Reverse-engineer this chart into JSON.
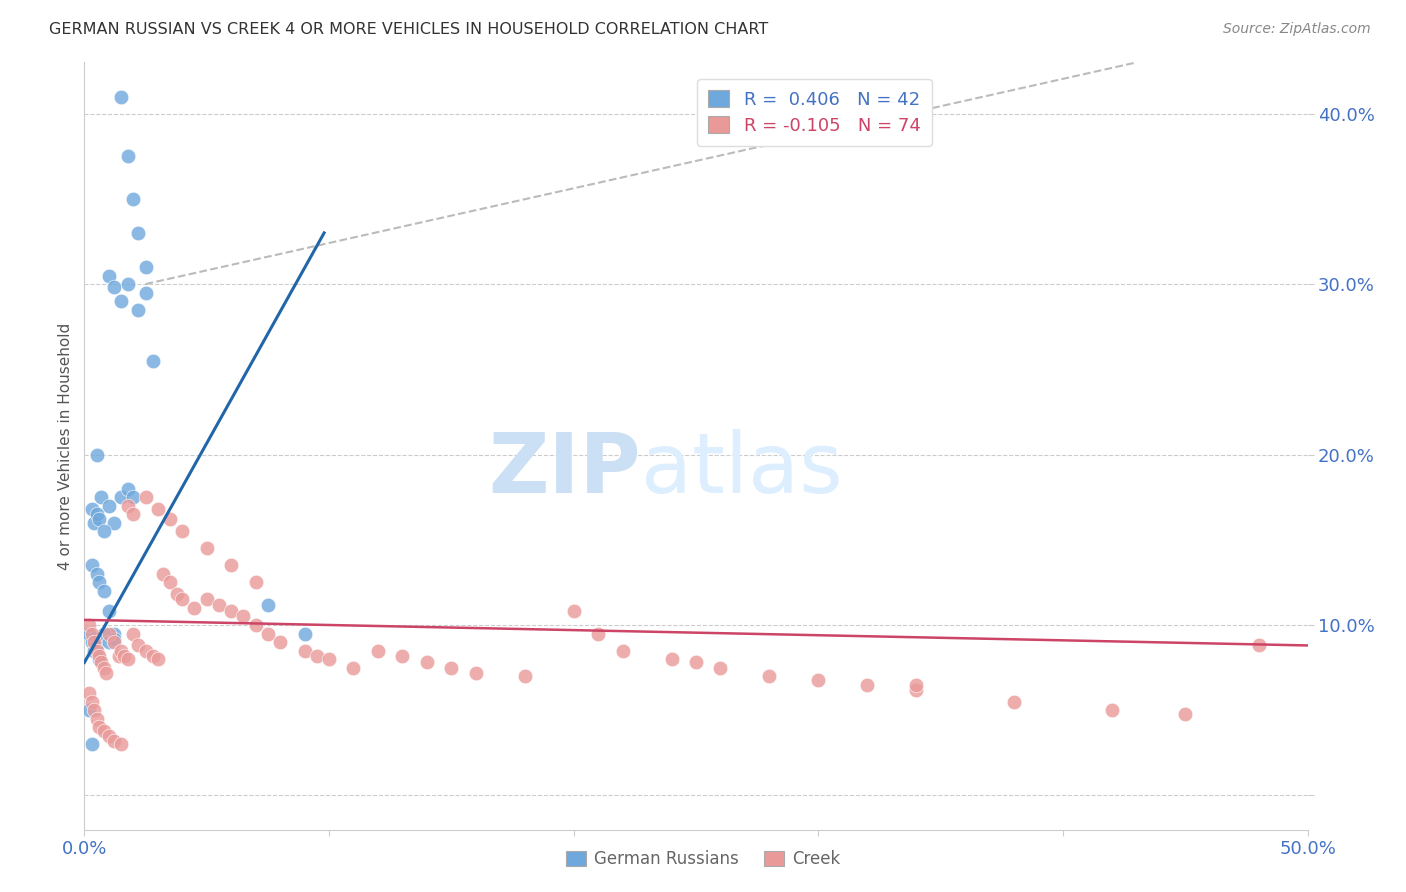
{
  "title": "GERMAN RUSSIAN VS CREEK 4 OR MORE VEHICLES IN HOUSEHOLD CORRELATION CHART",
  "source": "Source: ZipAtlas.com",
  "ylabel": "4 or more Vehicles in Household",
  "xlim": [
    0.0,
    0.5
  ],
  "ylim": [
    -0.02,
    0.43
  ],
  "ytick_vals": [
    0.0,
    0.1,
    0.2,
    0.3,
    0.4
  ],
  "ytick_labels": [
    "",
    "10.0%",
    "20.0%",
    "30.0%",
    "40.0%"
  ],
  "xtick_vals": [
    0.0,
    0.1,
    0.2,
    0.3,
    0.4,
    0.5
  ],
  "xtick_labels": [
    "0.0%",
    "",
    "",
    "",
    "",
    "50.0%"
  ],
  "legend_blue_r": "R =  0.406",
  "legend_blue_n": "N = 42",
  "legend_pink_r": "R = -0.105",
  "legend_pink_n": "N = 74",
  "blue_color": "#6fa8dc",
  "pink_color": "#ea9999",
  "blue_line_color": "#2266aa",
  "pink_line_color": "#cc4466",
  "diag_line_color": "#bbbbbb",
  "watermark_zip": "ZIP",
  "watermark_atlas": "atlas",
  "blue_scatter_x": [
    0.015,
    0.018,
    0.02,
    0.022,
    0.025,
    0.01,
    0.012,
    0.015,
    0.018,
    0.022,
    0.025,
    0.028,
    0.005,
    0.007,
    0.01,
    0.012,
    0.015,
    0.018,
    0.02,
    0.003,
    0.005,
    0.006,
    0.008,
    0.01,
    0.012,
    0.002,
    0.003,
    0.004,
    0.005,
    0.006,
    0.008,
    0.01,
    0.012,
    0.003,
    0.004,
    0.005,
    0.006,
    0.008,
    0.075,
    0.09,
    0.002,
    0.003
  ],
  "blue_scatter_y": [
    0.41,
    0.375,
    0.35,
    0.33,
    0.31,
    0.305,
    0.298,
    0.29,
    0.3,
    0.285,
    0.295,
    0.255,
    0.2,
    0.175,
    0.17,
    0.16,
    0.175,
    0.18,
    0.175,
    0.135,
    0.13,
    0.125,
    0.12,
    0.108,
    0.095,
    0.095,
    0.09,
    0.085,
    0.088,
    0.08,
    0.095,
    0.09,
    0.092,
    0.168,
    0.16,
    0.165,
    0.162,
    0.155,
    0.112,
    0.095,
    0.05,
    0.03
  ],
  "pink_scatter_x": [
    0.002,
    0.003,
    0.004,
    0.005,
    0.006,
    0.007,
    0.008,
    0.009,
    0.01,
    0.012,
    0.014,
    0.015,
    0.016,
    0.018,
    0.02,
    0.022,
    0.025,
    0.028,
    0.03,
    0.032,
    0.035,
    0.038,
    0.04,
    0.045,
    0.05,
    0.055,
    0.06,
    0.065,
    0.07,
    0.075,
    0.08,
    0.09,
    0.095,
    0.1,
    0.11,
    0.12,
    0.13,
    0.14,
    0.15,
    0.16,
    0.18,
    0.2,
    0.21,
    0.22,
    0.24,
    0.25,
    0.26,
    0.28,
    0.3,
    0.32,
    0.34,
    0.38,
    0.42,
    0.45,
    0.002,
    0.003,
    0.004,
    0.005,
    0.006,
    0.008,
    0.01,
    0.012,
    0.015,
    0.018,
    0.02,
    0.025,
    0.03,
    0.035,
    0.04,
    0.05,
    0.06,
    0.07,
    0.34,
    0.48
  ],
  "pink_scatter_y": [
    0.1,
    0.095,
    0.09,
    0.085,
    0.082,
    0.078,
    0.075,
    0.072,
    0.095,
    0.09,
    0.082,
    0.085,
    0.082,
    0.08,
    0.095,
    0.088,
    0.085,
    0.082,
    0.08,
    0.13,
    0.125,
    0.118,
    0.115,
    0.11,
    0.115,
    0.112,
    0.108,
    0.105,
    0.1,
    0.095,
    0.09,
    0.085,
    0.082,
    0.08,
    0.075,
    0.085,
    0.082,
    0.078,
    0.075,
    0.072,
    0.07,
    0.108,
    0.095,
    0.085,
    0.08,
    0.078,
    0.075,
    0.07,
    0.068,
    0.065,
    0.062,
    0.055,
    0.05,
    0.048,
    0.06,
    0.055,
    0.05,
    0.045,
    0.04,
    0.038,
    0.035,
    0.032,
    0.03,
    0.17,
    0.165,
    0.175,
    0.168,
    0.162,
    0.155,
    0.145,
    0.135,
    0.125,
    0.065,
    0.088
  ],
  "blue_line_x": [
    0.0,
    0.098
  ],
  "blue_line_y": [
    0.078,
    0.33
  ],
  "pink_line_x": [
    0.0,
    0.5
  ],
  "pink_line_y": [
    0.103,
    0.088
  ],
  "diag_line_x": [
    0.025,
    0.43
  ],
  "diag_line_y": [
    0.3,
    0.43
  ]
}
